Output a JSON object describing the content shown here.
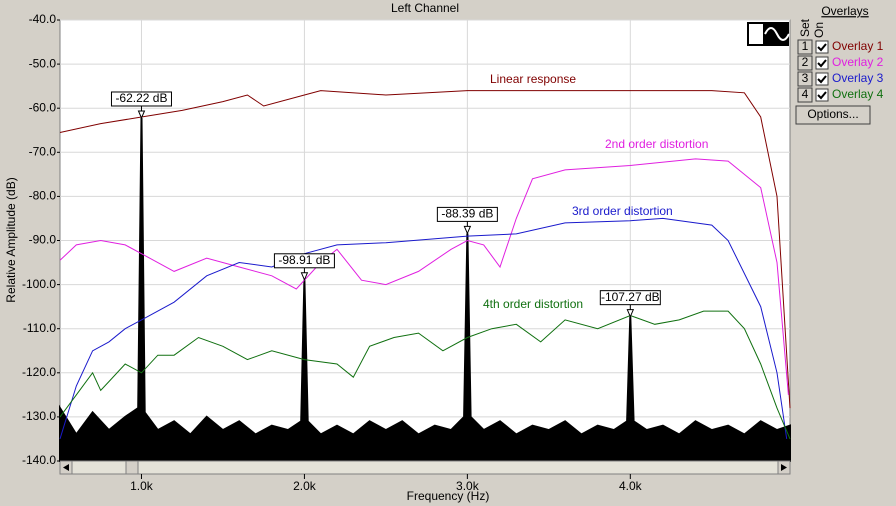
{
  "chart_data": {
    "type": "line",
    "title": "Left Channel",
    "xlabel": "Frequency (Hz)",
    "ylabel": "Relative Amplitude (dB)",
    "xlim": [
      500,
      4980
    ],
    "ylim": [
      -140,
      -40
    ],
    "xticks": [
      {
        "value": 1000,
        "label": "1.0k"
      },
      {
        "value": 2000,
        "label": "2.0k"
      },
      {
        "value": 3000,
        "label": "3.0k"
      },
      {
        "value": 4000,
        "label": "4.0k"
      }
    ],
    "yticks": [
      {
        "value": -40,
        "label": "-40.0"
      },
      {
        "value": -50,
        "label": "-50.0"
      },
      {
        "value": -60,
        "label": "-60.0"
      },
      {
        "value": -70,
        "label": "-70.0"
      },
      {
        "value": -80,
        "label": "-80.0"
      },
      {
        "value": -90,
        "label": "-90.0"
      },
      {
        "value": -100,
        "label": "-100.0"
      },
      {
        "value": -110,
        "label": "-110.0"
      },
      {
        "value": -120,
        "label": "-120.0"
      },
      {
        "value": -130,
        "label": "-130.0"
      },
      {
        "value": -140,
        "label": "-140.0"
      }
    ],
    "grid": true,
    "series": [
      {
        "name": "Overlay 1",
        "color": "#800000",
        "x": [
          500,
          750,
          1000,
          1250,
          1500,
          1650,
          1750,
          2000,
          2100,
          2500,
          3000,
          3500,
          4000,
          4500,
          4700,
          4800,
          4900,
          4950,
          4980
        ],
        "values": [
          -65.5,
          -63.5,
          -62,
          -60.5,
          -58.5,
          -57,
          -59.5,
          -57,
          -56,
          -57,
          -56,
          -56,
          -56,
          -56,
          -56.5,
          -62,
          -80,
          -110,
          -128
        ]
      },
      {
        "name": "Overlay 2",
        "color": "#e020e0",
        "x": [
          500,
          600,
          750,
          900,
          1000,
          1200,
          1400,
          1600,
          1800,
          1950,
          2100,
          2200,
          2350,
          2500,
          2700,
          2900,
          3000,
          3100,
          3200,
          3300,
          3400,
          3600,
          4000,
          4400,
          4600,
          4800,
          4900,
          4970
        ],
        "values": [
          -94.5,
          -91,
          -90,
          -91,
          -93,
          -97,
          -94,
          -96,
          -98,
          -101,
          -95,
          -92,
          -99,
          -100,
          -97,
          -92,
          -90,
          -91,
          -96,
          -85,
          -76,
          -74,
          -73,
          -71.5,
          -72,
          -78,
          -95,
          -125
        ]
      },
      {
        "name": "Overlay 3",
        "color": "#1a1acc",
        "x": [
          500,
          600,
          700,
          800,
          900,
          1000,
          1200,
          1400,
          1600,
          1800,
          2000,
          2200,
          2500,
          3000,
          3300,
          3600,
          4000,
          4200,
          4500,
          4600,
          4800,
          4900,
          4960
        ],
        "values": [
          -135,
          -123,
          -115,
          -113,
          -110,
          -108,
          -104,
          -98,
          -95,
          -96,
          -93,
          -91,
          -90.5,
          -89,
          -88.5,
          -86,
          -85.5,
          -85,
          -86.5,
          -90,
          -105,
          -120,
          -135
        ]
      },
      {
        "name": "Overlay 4",
        "color": "#107010",
        "x": [
          500,
          600,
          700,
          750,
          800,
          900,
          1000,
          1100,
          1200,
          1350,
          1500,
          1650,
          1800,
          2000,
          2200,
          2300,
          2400,
          2550,
          2700,
          2850,
          3000,
          3150,
          3300,
          3450,
          3600,
          3800,
          4000,
          4150,
          4300,
          4450,
          4600,
          4700,
          4800,
          4900,
          4980
        ],
        "values": [
          -130,
          -125,
          -120,
          -124,
          -122,
          -118,
          -120,
          -116,
          -116,
          -112,
          -114,
          -117,
          -115,
          -117,
          -118,
          -121,
          -114,
          -112,
          -111,
          -115,
          -112,
          -110,
          -109,
          -113,
          -108,
          -110,
          -107,
          -109,
          -108,
          -106,
          -106,
          -110,
          -118,
          -128,
          -135
        ]
      }
    ],
    "spectrum": {
      "color": "#000000",
      "x": [
        500,
        600,
        700,
        800,
        900,
        980,
        1000,
        1020,
        1100,
        1200,
        1300,
        1400,
        1500,
        1600,
        1700,
        1800,
        1900,
        1980,
        2000,
        2020,
        2100,
        2200,
        2300,
        2400,
        2500,
        2600,
        2700,
        2800,
        2900,
        2980,
        3000,
        3020,
        3100,
        3200,
        3300,
        3400,
        3500,
        3600,
        3700,
        3800,
        3900,
        3980,
        4000,
        4020,
        4100,
        4200,
        4300,
        4400,
        4500,
        4600,
        4700,
        4800,
        4900,
        4980
      ],
      "values": [
        -128,
        -134,
        -129,
        -133,
        -130,
        -128,
        -62.22,
        -129,
        -133,
        -131,
        -134,
        -130,
        -133,
        -131,
        -134,
        -132,
        -133,
        -131,
        -98.91,
        -131,
        -134,
        -132,
        -134,
        -131,
        -133,
        -131,
        -134,
        -132,
        -133,
        -130,
        -88.39,
        -130,
        -133,
        -131,
        -134,
        -132,
        -133,
        -131,
        -134,
        -132,
        -133,
        -131,
        -107.27,
        -131,
        -133,
        -132,
        -134,
        -131,
        -133,
        -132,
        -134,
        -131,
        -133,
        -132
      ]
    },
    "markers": [
      {
        "x": 1000,
        "value": -62.22,
        "label": "-62.22 dB"
      },
      {
        "x": 2000,
        "value": -98.91,
        "label": "-98.91 dB"
      },
      {
        "x": 3000,
        "value": -88.39,
        "label": "-88.39 dB"
      },
      {
        "x": 4000,
        "value": -107.27,
        "label": "-107.27 dB"
      }
    ],
    "annotations": [
      "Linear response",
      "2nd order distortion",
      "3rd order distortion",
      "4th order distortion"
    ]
  },
  "overlay_panel": {
    "title": "Overlays",
    "set_label": "Set",
    "on_label": "On",
    "sets": [
      "1",
      "2",
      "3",
      "4"
    ],
    "checked": [
      true,
      true,
      true,
      true
    ],
    "button": "Options..."
  }
}
